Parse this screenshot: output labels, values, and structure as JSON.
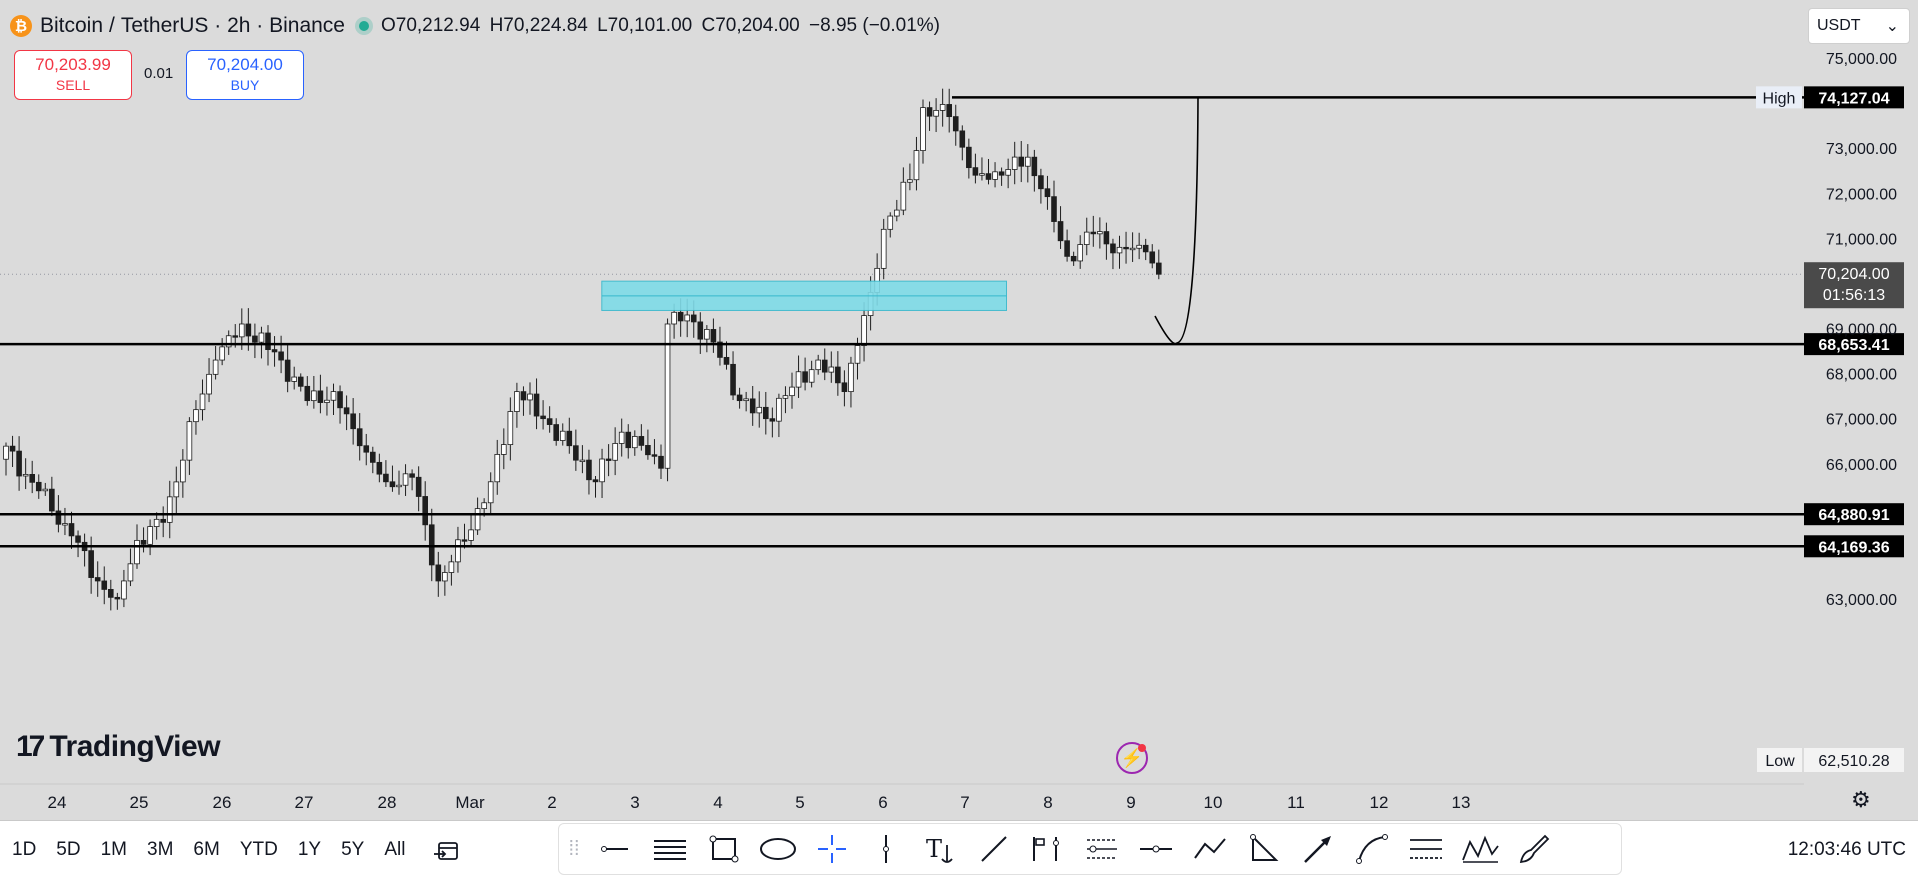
{
  "header": {
    "coin_glyph": "₿",
    "symbol": "Bitcoin",
    "separator": "/",
    "quote": "TetherUS · 2h · Binance",
    "open": "O70,212.94",
    "high": "H70,224.84",
    "low": "L70,101.00",
    "close": "C70,204.00",
    "change": "−8.95 (−0.01%)"
  },
  "trade": {
    "sell_price": "70,203.99",
    "sell_label": "SELL",
    "spread": "0.01",
    "buy_price": "70,204.00",
    "buy_label": "BUY"
  },
  "currency": {
    "selected": "USDT",
    "chevron": "⌄"
  },
  "logo": {
    "mark": "17",
    "text": "TradingView"
  },
  "chart_data": {
    "type": "candlestick",
    "price_ticks": [
      "75,000.00",
      "73,000.00",
      "72,000.00",
      "71,000.00",
      "69,000.00",
      "68,000.00",
      "67,000.00",
      "66,000.00",
      "63,000.00"
    ],
    "date_ticks": [
      "24",
      "25",
      "26",
      "27",
      "28",
      "Mar",
      "2",
      "3",
      "4",
      "5",
      "6",
      "7",
      "8",
      "9",
      "10",
      "11",
      "12",
      "13"
    ],
    "ylim": [
      62500,
      75300
    ],
    "horizontal_levels": [
      {
        "label": "74,127.04",
        "tag": "High",
        "value": 74127.04
      },
      {
        "label": "68,653.41",
        "value": 68653.41
      },
      {
        "label": "64,880.91",
        "value": 64880.91
      },
      {
        "label": "64,169.36",
        "value": 64169.36
      }
    ],
    "current_price": {
      "label": "70,204.00",
      "countdown": "01:56:13",
      "value": 70204
    },
    "low_tag": {
      "tag": "Low",
      "label": "62,510.28",
      "value": 62510.28
    },
    "zone": {
      "low": 69400,
      "high": 70050,
      "from": "2.6",
      "to": "7.5",
      "color": "#7fdbe8"
    },
    "projection": "dip to ~70,000 then rally to 74,127",
    "colors": {
      "up": "#ffffff",
      "down": "#1e1e1e",
      "wick": "#1e1e1e",
      "line": "#000000",
      "grid_bg": "#dbdbdb"
    }
  },
  "bottom": {
    "ranges": [
      "1D",
      "5D",
      "1M",
      "3M",
      "6M",
      "YTD",
      "1Y",
      "5Y",
      "All"
    ],
    "time": "12:03:46 UTC"
  }
}
